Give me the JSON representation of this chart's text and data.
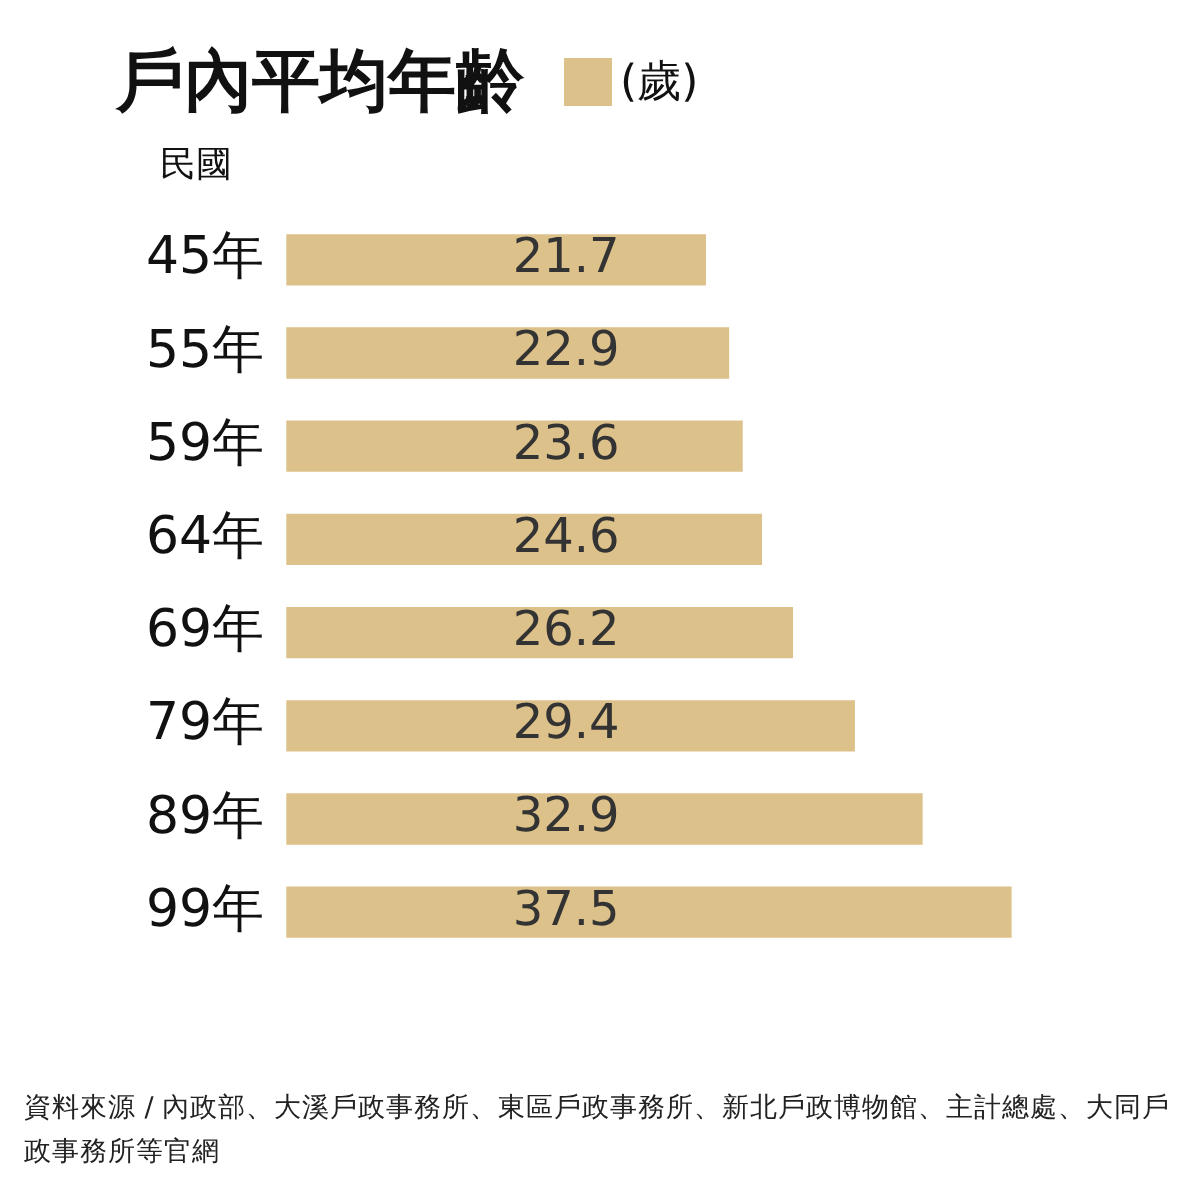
{
  "chart_data": {
    "type": "bar",
    "orientation": "horizontal",
    "title": "戶內平均年齡",
    "ylabel": "民國",
    "categories": [
      "45年",
      "55年",
      "59年",
      "64年",
      "69年",
      "79年",
      "89年",
      "99年"
    ],
    "series": [
      {
        "name": "(歲)",
        "color": "#dcc18a",
        "values": [
          21.7,
          22.9,
          23.6,
          24.6,
          26.2,
          29.4,
          32.9,
          37.5
        ]
      }
    ],
    "data_labels": true,
    "legend": "top",
    "annotations": [
      "資料來源 / 內政部、大溪戶政事務所、東區戶政事務所、新北戶政博物館、主計總處、大同戶政事務所等官網"
    ]
  }
}
